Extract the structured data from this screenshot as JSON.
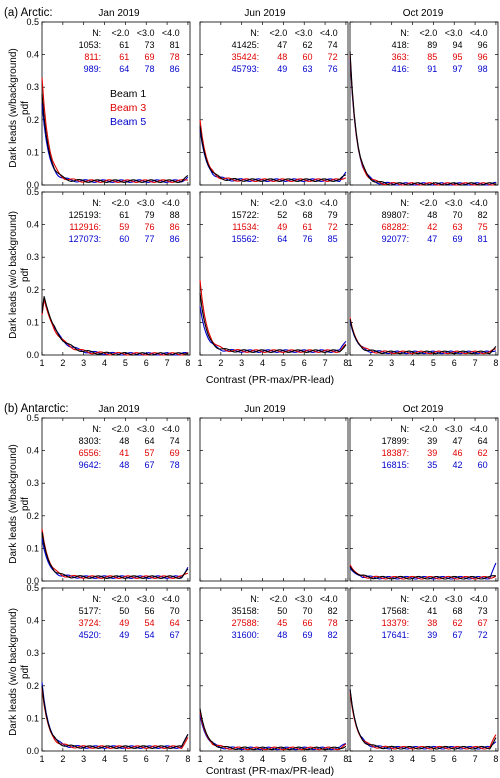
{
  "sections": [
    {
      "label": "(a) Arctic:",
      "months": [
        "Jan 2019",
        "Jun 2019",
        "Oct 2019"
      ],
      "xlabel": "Contrast (PR-max/PR-lead)"
    },
    {
      "label": "(b) Antarctic:",
      "months": [
        "Jan 2019",
        "Jun 2019",
        "Oct 2019"
      ],
      "xlabel": "Contrast (PR-max/PR-lead)"
    }
  ],
  "row_ylabels": [
    "Dark leads (w/background)",
    "Dark leads (w/o background)"
  ],
  "ylabel_unit": "pdf",
  "legend": [
    {
      "name": "Beam 1",
      "color": "#000000"
    },
    {
      "name": "Beam 3",
      "color": "#e00000"
    },
    {
      "name": "Beam 5",
      "color": "#0000cc"
    }
  ],
  "table_header": [
    "N:",
    "<2.0",
    "<3.0",
    "<4.0"
  ],
  "xticks": [
    "1",
    "2",
    "3",
    "4",
    "5",
    "6",
    "7",
    "8"
  ],
  "yticks": [
    "0.0",
    "0.1",
    "0.2",
    "0.3",
    "0.4",
    "0.5"
  ],
  "chart_data": {
    "type": "line",
    "xlim": [
      1,
      8.1
    ],
    "ylim": [
      0,
      0.5
    ],
    "xlabel": "Contrast (PR-max/PR-lead)",
    "ylabel": "pdf",
    "panels": [
      {
        "section": 0,
        "row": 0,
        "col": 0,
        "table": [
          [
            "1053:",
            "61",
            "73",
            "81"
          ],
          [
            "811:",
            "61",
            "69",
            "78"
          ],
          [
            "989:",
            "64",
            "78",
            "86"
          ]
        ],
        "peak": [
          0.28,
          0.33,
          0.25
        ],
        "tail": [
          0.03,
          0.02,
          0.03
        ],
        "floor": 0.012
      },
      {
        "section": 0,
        "row": 0,
        "col": 1,
        "table": [
          [
            "41425:",
            "47",
            "62",
            "74"
          ],
          [
            "35424:",
            "48",
            "60",
            "72"
          ],
          [
            "45793:",
            "49",
            "63",
            "76"
          ]
        ],
        "peak": [
          0.18,
          0.2,
          0.17
        ],
        "tail": [
          0.035,
          0.03,
          0.045
        ],
        "floor": 0.015
      },
      {
        "section": 0,
        "row": 0,
        "col": 2,
        "table": [
          [
            "418:",
            "89",
            "94",
            "96"
          ],
          [
            "363:",
            "85",
            "95",
            "96"
          ],
          [
            "416:",
            "91",
            "97",
            "98"
          ]
        ],
        "peak": [
          0.41,
          0.4,
          0.39
        ],
        "tail": [
          0.005,
          0.005,
          0.005
        ],
        "floor": 0.003
      },
      {
        "section": 0,
        "row": 1,
        "col": 0,
        "table": [
          [
            "125193:",
            "61",
            "79",
            "88"
          ],
          [
            "112916:",
            "59",
            "76",
            "86"
          ],
          [
            "127073:",
            "60",
            "77",
            "86"
          ]
        ],
        "peak": [
          0.18,
          0.17,
          0.175
        ],
        "tail": [
          0.01,
          0.005,
          0.005
        ],
        "floor": 0.003,
        "hump": true
      },
      {
        "section": 0,
        "row": 1,
        "col": 1,
        "table": [
          [
            "15722:",
            "52",
            "68",
            "79"
          ],
          [
            "11534:",
            "49",
            "61",
            "72"
          ],
          [
            "15562:",
            "64",
            "76",
            "85"
          ]
        ],
        "peak": [
          0.19,
          0.23,
          0.15
        ],
        "tail": [
          0.04,
          0.035,
          0.055
        ],
        "floor": 0.012
      },
      {
        "section": 0,
        "row": 1,
        "col": 2,
        "table": [
          [
            "89807:",
            "48",
            "70",
            "82"
          ],
          [
            "68282:",
            "42",
            "63",
            "75"
          ],
          [
            "92077:",
            "47",
            "69",
            "81"
          ]
        ],
        "peak": [
          0.11,
          0.115,
          0.105
        ],
        "tail": [
          0.03,
          0.02,
          0.02
        ],
        "floor": 0.008
      },
      {
        "section": 1,
        "row": 0,
        "col": 0,
        "table": [
          [
            "8303:",
            "48",
            "64",
            "74"
          ],
          [
            "6556:",
            "41",
            "57",
            "69"
          ],
          [
            "9642:",
            "48",
            "67",
            "78"
          ]
        ],
        "peak": [
          0.15,
          0.16,
          0.13
        ],
        "tail": [
          0.04,
          0.03,
          0.055
        ],
        "floor": 0.012
      },
      {
        "section": 1,
        "row": 0,
        "col": 1,
        "table": [],
        "peak": [],
        "tail": [],
        "floor": 0
      },
      {
        "section": 1,
        "row": 0,
        "col": 2,
        "table": [
          [
            "17899:",
            "39",
            "47",
            "64"
          ],
          [
            "18387:",
            "39",
            "46",
            "62"
          ],
          [
            "16815:",
            "35",
            "42",
            "60"
          ]
        ],
        "peak": [
          0.045,
          0.05,
          0.04
        ],
        "tail": [
          0.02,
          0.02,
          0.065
        ],
        "floor": 0.01
      },
      {
        "section": 1,
        "row": 1,
        "col": 0,
        "table": [
          [
            "5177:",
            "50",
            "56",
            "70"
          ],
          [
            "3724:",
            "49",
            "54",
            "64"
          ],
          [
            "4520:",
            "49",
            "54",
            "67"
          ]
        ],
        "peak": [
          0.2,
          0.19,
          0.21
        ],
        "tail": [
          0.07,
          0.05,
          0.06
        ],
        "floor": 0.012
      },
      {
        "section": 1,
        "row": 1,
        "col": 1,
        "table": [
          [
            "35158:",
            "50",
            "70",
            "82"
          ],
          [
            "27588:",
            "45",
            "66",
            "78"
          ],
          [
            "31600:",
            "48",
            "69",
            "82"
          ]
        ],
        "peak": [
          0.13,
          0.12,
          0.11
        ],
        "tail": [
          0.02,
          0.02,
          0.03
        ],
        "floor": 0.008
      },
      {
        "section": 1,
        "row": 1,
        "col": 2,
        "table": [
          [
            "17568:",
            "41",
            "68",
            "73"
          ],
          [
            "13379:",
            "38",
            "62",
            "67"
          ],
          [
            "17641:",
            "39",
            "67",
            "72"
          ]
        ],
        "peak": [
          0.19,
          0.18,
          0.19
        ],
        "tail": [
          0.05,
          0.06,
          0.04
        ],
        "floor": 0.01
      }
    ]
  }
}
